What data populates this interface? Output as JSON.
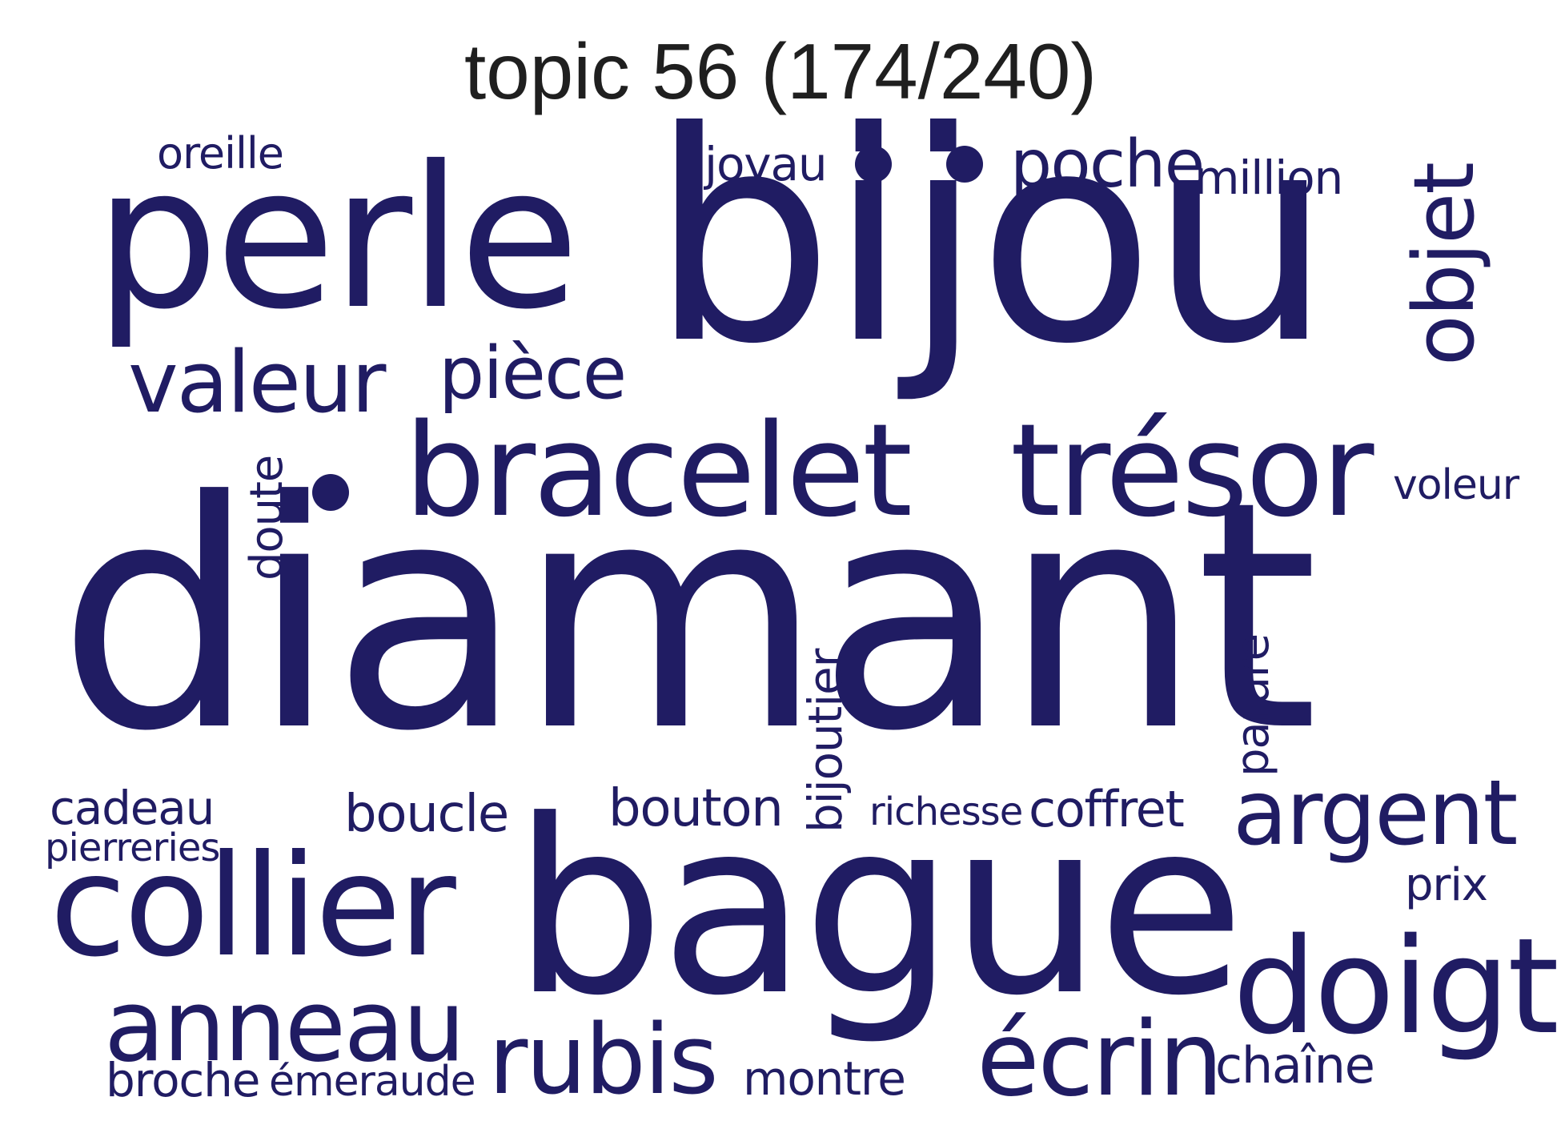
{
  "title": "topic 56 (174/240)",
  "color": "#201c63",
  "words": {
    "diamant": "diamant",
    "bijou": "bijou",
    "bague": "bague",
    "perle": "perle",
    "collier": "collier",
    "bracelet": "bracelet",
    "tresor": "trésor",
    "doigt": "doigt",
    "valeur": "valeur",
    "piece": "pièce",
    "objet": "objet",
    "anneau": "anneau",
    "rubis": "rubis",
    "ecrin": "écrin",
    "argent": "argent",
    "poche": "poche",
    "million": "million",
    "joyau": "joyau",
    "oreille": "oreille",
    "doute": "doute",
    "voleur": "voleur",
    "bijoutier": "bijoutier",
    "parure": "parure",
    "cadeau": "cadeau",
    "pierreries": "pierreries",
    "boucle": "boucle",
    "bouton": "bouton",
    "richesse": "richesse",
    "coffret": "coffret",
    "prix": "prix",
    "broche": "broche",
    "emeraude": "émeraude",
    "montre": "montre",
    "chaine": "chaîne"
  }
}
